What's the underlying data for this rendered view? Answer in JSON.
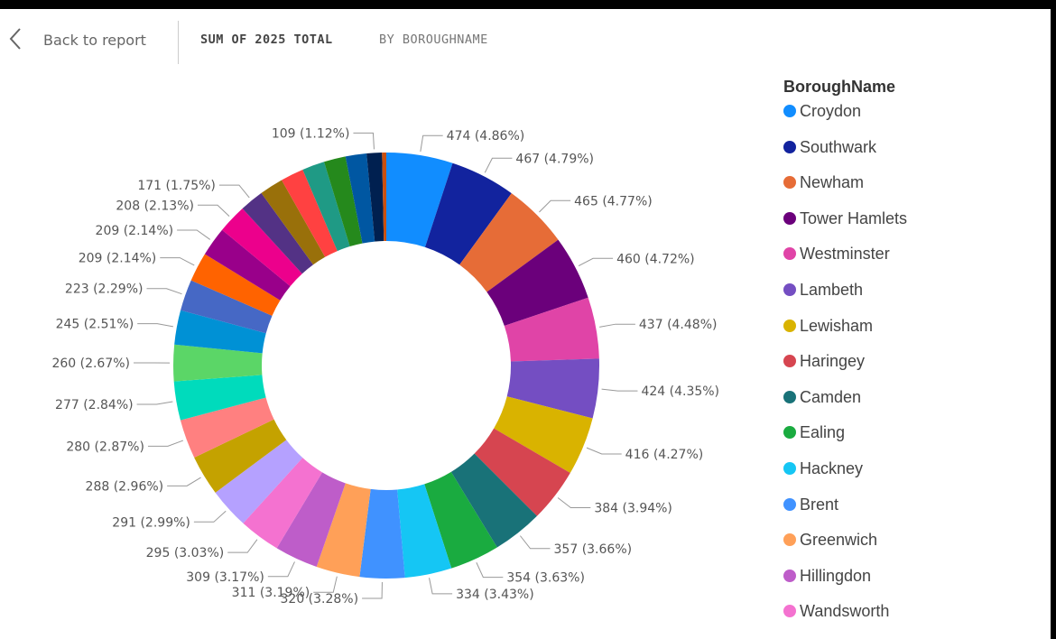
{
  "header": {
    "back_label": "Back to report",
    "title_measure": "SUM OF 2025 TOTAL",
    "title_by": "BY BOROUGHNAME",
    "back_icon": "chevron-left-icon"
  },
  "legend": {
    "title": "BoroughName",
    "items": [
      {
        "name": "Croydon",
        "color": "#118DFF"
      },
      {
        "name": "Southwark",
        "color": "#12239E"
      },
      {
        "name": "Newham",
        "color": "#E66C37"
      },
      {
        "name": "Tower Hamlets",
        "color": "#6B007B"
      },
      {
        "name": "Westminster",
        "color": "#E044A7"
      },
      {
        "name": "Lambeth",
        "color": "#744EC2"
      },
      {
        "name": "Lewisham",
        "color": "#D9B300"
      },
      {
        "name": "Haringey",
        "color": "#D64550"
      },
      {
        "name": "Camden",
        "color": "#197278"
      },
      {
        "name": "Ealing",
        "color": "#1AAB40"
      },
      {
        "name": "Hackney",
        "color": "#15C6F4"
      },
      {
        "name": "Brent",
        "color": "#4092FF"
      },
      {
        "name": "Greenwich",
        "color": "#FFA058"
      },
      {
        "name": "Hillingdon",
        "color": "#BE5DC9"
      },
      {
        "name": "Wandsworth",
        "color": "#F472D0"
      }
    ]
  },
  "chart_data": {
    "type": "pie",
    "variant": "donut",
    "title": "Sum of 2025 Total by BoroughName",
    "slices": [
      {
        "value": 474,
        "label": "474 (4.86%)",
        "color": "#118DFF"
      },
      {
        "value": 467,
        "label": "467 (4.79%)",
        "color": "#12239E"
      },
      {
        "value": 465,
        "label": "465 (4.77%)",
        "color": "#E66C37"
      },
      {
        "value": 460,
        "label": "460 (4.72%)",
        "color": "#6B007B"
      },
      {
        "value": 437,
        "label": "437 (4.48%)",
        "color": "#E044A7"
      },
      {
        "value": 424,
        "label": "424 (4.35%)",
        "color": "#744EC2"
      },
      {
        "value": 416,
        "label": "416 (4.27%)",
        "color": "#D9B300"
      },
      {
        "value": 384,
        "label": "384 (3.94%)",
        "color": "#D64550"
      },
      {
        "value": 357,
        "label": "357 (3.66%)",
        "color": "#197278"
      },
      {
        "value": 354,
        "label": "354 (3.63%)",
        "color": "#1AAB40"
      },
      {
        "value": 334,
        "label": "334 (3.43%)",
        "color": "#15C6F4"
      },
      {
        "value": 320,
        "label": "320 (3.28%)",
        "color": "#4092FF"
      },
      {
        "value": 311,
        "label": "311 (3.19%)",
        "color": "#FFA058"
      },
      {
        "value": 309,
        "label": "309 (3.17%)",
        "color": "#BE5DC9"
      },
      {
        "value": 295,
        "label": "295 (3.03%)",
        "color": "#F472D0"
      },
      {
        "value": 291,
        "label": "291 (2.99%)",
        "color": "#B5A1FF"
      },
      {
        "value": 288,
        "label": "288 (2.96%)",
        "color": "#C4A200"
      },
      {
        "value": 280,
        "label": "280 (2.87%)",
        "color": "#FF8080"
      },
      {
        "value": 277,
        "label": "277 (2.84%)",
        "color": "#00DBBC"
      },
      {
        "value": 260,
        "label": "260 (2.67%)",
        "color": "#5BD667"
      },
      {
        "value": 245,
        "label": "245 (2.51%)",
        "color": "#0091D5"
      },
      {
        "value": 223,
        "label": "223 (2.29%)",
        "color": "#4668C5"
      },
      {
        "value": 209,
        "label": "209 (2.14%)",
        "color": "#FF6300"
      },
      {
        "value": 209,
        "label": "209 (2.14%)",
        "color": "#99008A"
      },
      {
        "value": 208,
        "label": "208 (2.13%)",
        "color": "#EC008C"
      },
      {
        "value": 171,
        "label": "171 (1.75%)",
        "color": "#533285"
      },
      {
        "value": 170,
        "label": null,
        "color": "#99700A"
      },
      {
        "value": 165,
        "label": null,
        "color": "#FF4141"
      },
      {
        "value": 160,
        "label": null,
        "color": "#1F9A85"
      },
      {
        "value": 155,
        "label": null,
        "color": "#25891C"
      },
      {
        "value": 150,
        "label": null,
        "color": "#0057A2"
      },
      {
        "value": 109,
        "label": "109 (1.12%)",
        "color": "#002050"
      },
      {
        "value": 30,
        "label": null,
        "color": "#C94F0F"
      }
    ]
  }
}
